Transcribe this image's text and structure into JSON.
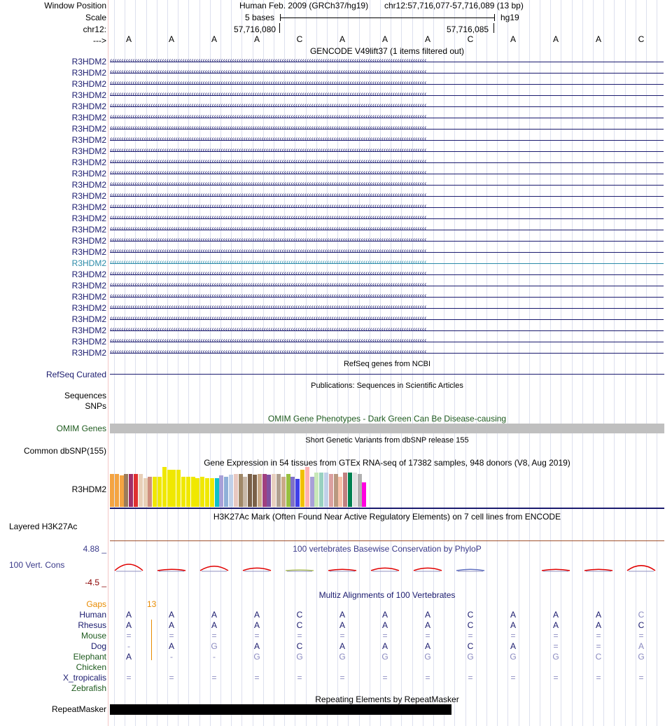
{
  "header": {
    "window_position_label": "Window Position",
    "scale_label": "Scale",
    "chr_label": "chr12:",
    "arrow_label": "--->",
    "assembly": "Human Feb. 2009 (GRCh37/hg19)",
    "position": "chr12:57,716,077-57,716,089 (13 bp)",
    "scale_text": "5 bases",
    "scale_db": "hg19",
    "coord_left": "57,716,080",
    "coord_right": "57,716,085"
  },
  "bases": [
    "A",
    "A",
    "A",
    "A",
    "C",
    "A",
    "A",
    "A",
    "C",
    "A",
    "A",
    "A",
    "C"
  ],
  "gencode": {
    "title": "GENCODE V49lift37 (1 items filtered out)",
    "gene_name": "R3HDM2",
    "rows": 27,
    "highlight_row_index": 18,
    "line_color": "#1a1a6e",
    "highlight_color": "#2a8aa8"
  },
  "refseq": {
    "title": "RefSeq genes from NCBI",
    "label": "RefSeq Curated",
    "color": "#1a1a6e"
  },
  "publications": {
    "title": "Publications: Sequences in Scientific Articles",
    "label_sequences": "Sequences",
    "label_snps": "SNPs"
  },
  "omim": {
    "title": "OMIM Gene Phenotypes - Dark Green Can Be Disease-causing",
    "label": "OMIM Genes",
    "color": "#1e5a1e"
  },
  "dbsnp": {
    "title": "Short Genetic Variants from dbSNP release 155",
    "label": "Common dbSNP(155)"
  },
  "gtex": {
    "title": "Gene Expression in 54 tissues from GTEx RNA-seq of 17382 samples, 948 donors (V8, Aug 2019)",
    "label": "R3HDM2",
    "bars": [
      {
        "h": 0.47,
        "c": "#f4a442"
      },
      {
        "h": 0.47,
        "c": "#f4a442"
      },
      {
        "h": 0.45,
        "c": "#f4a442"
      },
      {
        "h": 0.47,
        "c": "#9b7b5a"
      },
      {
        "h": 0.47,
        "c": "#a0306a"
      },
      {
        "h": 0.47,
        "c": "#e03030"
      },
      {
        "h": 0.47,
        "c": "#e8d0b8"
      },
      {
        "h": 0.41,
        "c": "#e8d0b8"
      },
      {
        "h": 0.43,
        "c": "#cf8f7f"
      },
      {
        "h": 0.43,
        "c": "#f0e800"
      },
      {
        "h": 0.43,
        "c": "#f0e800"
      },
      {
        "h": 0.57,
        "c": "#f0e800"
      },
      {
        "h": 0.53,
        "c": "#f0e800"
      },
      {
        "h": 0.53,
        "c": "#f0e800"
      },
      {
        "h": 0.53,
        "c": "#f0e800"
      },
      {
        "h": 0.43,
        "c": "#f0e800"
      },
      {
        "h": 0.43,
        "c": "#f0e800"
      },
      {
        "h": 0.43,
        "c": "#f0e800"
      },
      {
        "h": 0.41,
        "c": "#f0e800"
      },
      {
        "h": 0.43,
        "c": "#f0e800"
      },
      {
        "h": 0.41,
        "c": "#f0e800"
      },
      {
        "h": 0.41,
        "c": "#f0e800"
      },
      {
        "h": 0.41,
        "c": "#10c0c8"
      },
      {
        "h": 0.45,
        "c": "#a8a0d8"
      },
      {
        "h": 0.43,
        "c": "#8fb0d8"
      },
      {
        "h": 0.46,
        "c": "#c0d0e8"
      },
      {
        "h": 0.47,
        "c": "#e8c8c0"
      },
      {
        "h": 0.47,
        "c": "#a08868"
      },
      {
        "h": 0.43,
        "c": "#c8b8a8"
      },
      {
        "h": 0.47,
        "c": "#7a6048"
      },
      {
        "h": 0.46,
        "c": "#7a6048"
      },
      {
        "h": 0.47,
        "c": "#caaa88"
      },
      {
        "h": 0.47,
        "c": "#a04080"
      },
      {
        "h": 0.46,
        "c": "#8050a0"
      },
      {
        "h": 0.47,
        "c": "#e8d0c0"
      },
      {
        "h": 0.47,
        "c": "#b0a090"
      },
      {
        "h": 0.43,
        "c": "#caaa88"
      },
      {
        "h": 0.47,
        "c": "#98c040"
      },
      {
        "h": 0.43,
        "c": "#7f70c8"
      },
      {
        "h": 0.4,
        "c": "#4040e8"
      },
      {
        "h": 0.53,
        "c": "#f0c000"
      },
      {
        "h": 0.57,
        "c": "#ffb0b0"
      },
      {
        "h": 0.43,
        "c": "#a8a0d8"
      },
      {
        "h": 0.49,
        "c": "#c8e8b8"
      },
      {
        "h": 0.49,
        "c": "#98d0c0"
      },
      {
        "h": 0.49,
        "c": "#c0d0e8"
      },
      {
        "h": 0.47,
        "c": "#dba0a0"
      },
      {
        "h": 0.47,
        "c": "#b89880"
      },
      {
        "h": 0.43,
        "c": "#f8c0a8"
      },
      {
        "h": 0.49,
        "c": "#c08080"
      },
      {
        "h": 0.49,
        "c": "#008050"
      },
      {
        "h": 0.49,
        "c": "#e0e0e0"
      },
      {
        "h": 0.47,
        "c": "#b0b0b0"
      },
      {
        "h": 0.35,
        "c": "#ff00e0"
      }
    ]
  },
  "h3k27ac": {
    "title": "H3K27Ac Mark (Often Found Near Active Regulatory Elements) on 7 cell lines from ENCODE",
    "label": "Layered H3K27Ac"
  },
  "phylop": {
    "title": "100 vertebrates Basewise Conservation by PhyloP",
    "label": "100 Vert. Cons",
    "max": "4.88 _",
    "min": "-4.5 _",
    "color": "#3a3a8a"
  },
  "multiz": {
    "title": "Multiz Alignments of 100 Vertebrates",
    "gaps_label": "Gaps",
    "gap_count": "13",
    "gaps_color": "#e88a00",
    "species": [
      {
        "name": "Human",
        "color": "#1a1a6e",
        "bases": [
          "A",
          "A",
          "A",
          "A",
          "C",
          "A",
          "A",
          "A",
          "C",
          "A",
          "A",
          "A",
          "C"
        ],
        "faint": [
          false,
          false,
          false,
          false,
          false,
          false,
          false,
          false,
          false,
          false,
          false,
          false,
          true
        ]
      },
      {
        "name": "Rhesus",
        "color": "#1a1a6e",
        "bases": [
          "A",
          "A",
          "A",
          "A",
          "C",
          "A",
          "A",
          "A",
          "C",
          "A",
          "A",
          "A",
          "C"
        ],
        "faint": [
          false,
          false,
          false,
          false,
          false,
          false,
          false,
          false,
          false,
          false,
          false,
          false,
          false
        ]
      },
      {
        "name": "Mouse",
        "color": "#1e5a1e",
        "bases": [
          "=",
          "=",
          "=",
          "=",
          "=",
          "=",
          "=",
          "=",
          "=",
          "=",
          "=",
          "=",
          "="
        ],
        "faint": [
          true,
          true,
          true,
          true,
          true,
          true,
          true,
          true,
          true,
          true,
          true,
          true,
          true
        ]
      },
      {
        "name": "Dog",
        "color": "#1a1a6e",
        "bases": [
          "-",
          "A",
          "G",
          "A",
          "C",
          "A",
          "A",
          "A",
          "C",
          "A",
          "=",
          "=",
          "A"
        ],
        "faint": [
          true,
          false,
          true,
          false,
          false,
          false,
          false,
          false,
          false,
          false,
          true,
          true,
          true
        ]
      },
      {
        "name": "Elephant",
        "color": "#1e5a1e",
        "bases": [
          "A",
          "-",
          "-",
          "G",
          "G",
          "G",
          "G",
          "G",
          "G",
          "G",
          "G",
          "C",
          "G"
        ],
        "faint": [
          false,
          true,
          true,
          true,
          true,
          true,
          true,
          true,
          true,
          true,
          true,
          true,
          true
        ]
      },
      {
        "name": "Chicken",
        "color": "#1e5a1e",
        "bases": [
          "",
          "",
          "",
          "",
          "",
          "",
          "",
          "",
          "",
          "",
          "",
          "",
          ""
        ],
        "faint": []
      },
      {
        "name": "X_tropicalis",
        "color": "#1a1a6e",
        "bases": [
          "=",
          "=",
          "=",
          "=",
          "=",
          "=",
          "=",
          "=",
          "=",
          "=",
          "=",
          "=",
          "="
        ],
        "faint": [
          true,
          true,
          true,
          true,
          true,
          true,
          true,
          true,
          true,
          true,
          true,
          true,
          true
        ]
      },
      {
        "name": "Zebrafish",
        "color": "#1e5a1e",
        "bases": [
          "",
          "",
          "",
          "",
          "",
          "",
          "",
          "",
          "",
          "",
          "",
          "",
          ""
        ],
        "faint": []
      }
    ]
  },
  "repeatmasker": {
    "title": "Repeating Elements by RepeatMasker",
    "label": "RepeatMasker",
    "extent": 0.616
  }
}
